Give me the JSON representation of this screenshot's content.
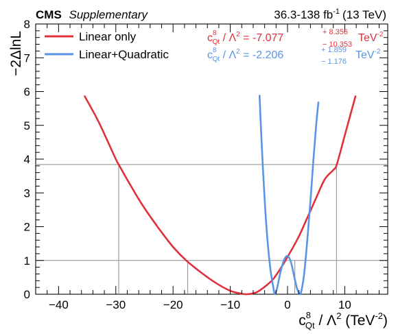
{
  "header": {
    "experiment": "CMS",
    "tag": "Supplementary",
    "lumi_range": "36.3-138 fb",
    "lumi_exp": "-1",
    "energy": "(13 TeV)"
  },
  "chart_data": {
    "type": "line",
    "xlabel_sym": "c",
    "xlabel_sup": "8",
    "xlabel_sub": "Qt",
    "xlabel_rest": " / Λ",
    "xlabel_sq": "2",
    "xlabel_unit": " (TeV",
    "xlabel_unit_exp": "-2",
    "xlabel_close": ")",
    "ylabel": "−2ΔlnL",
    "xlim": [
      -44,
      17.5
    ],
    "ylim": [
      0,
      8
    ],
    "xticks": [
      -40,
      -30,
      -20,
      -10,
      0,
      10
    ],
    "yticks": [
      0,
      1,
      2,
      3,
      4,
      5,
      6,
      7,
      8
    ],
    "hlines": [
      1,
      3.84
    ],
    "grid": false,
    "legend_position": "top-left",
    "series": [
      {
        "name": "Linear only",
        "color": "#e0303b",
        "x": [
          -35.5,
          -33,
          -30,
          -29.5,
          -27,
          -25,
          -22.5,
          -20,
          -17.7,
          -15,
          -12.5,
          -10,
          -8.5,
          -7.1,
          -5.5,
          -4,
          -2.5,
          -1,
          0.5,
          2,
          3.5,
          5,
          6.5,
          8,
          8.6,
          10,
          11.9
        ],
        "y": [
          5.88,
          5.1,
          4.0,
          3.84,
          3.1,
          2.55,
          1.95,
          1.4,
          1.0,
          0.63,
          0.33,
          0.1,
          0.03,
          0.0,
          0.05,
          0.22,
          0.45,
          0.82,
          1.25,
          1.72,
          2.28,
          2.85,
          3.4,
          3.68,
          3.84,
          4.7,
          5.88
        ]
      },
      {
        "name": "Linear+Quadratic",
        "color": "#5a93e8",
        "x": [
          -4.9,
          -4.5,
          -4,
          -3.5,
          -3,
          -2.5,
          -2.2,
          -1.8,
          -1.2,
          -0.6,
          0,
          0.6,
          1.2,
          1.7,
          2.2,
          2.6,
          3,
          3.5,
          4,
          4.5,
          5,
          5.4
        ],
        "y": [
          5.9,
          4.4,
          2.8,
          1.6,
          0.75,
          0.22,
          0.0,
          0.2,
          0.68,
          1.02,
          1.13,
          0.95,
          0.5,
          0.15,
          0.0,
          0.25,
          0.75,
          1.7,
          2.75,
          3.95,
          5.0,
          5.7
        ]
      }
    ],
    "intervals": [
      {
        "series": 0,
        "level": 1,
        "lo": -17.43,
        "hi": 1.28
      },
      {
        "series": 0,
        "level": 3.84,
        "lo": -29.5,
        "hi": 8.55
      }
    ],
    "results": [
      {
        "prefix": " / Λ",
        "sq": "2",
        "eq": " = -7.077",
        "up": "+ 8.356",
        "dn": "− 10.353",
        "unit": " TeV",
        "unit_exp": "-2"
      },
      {
        "prefix": " / Λ",
        "sq": "2",
        "eq": " = -2.206",
        "up": "+ 1.859",
        "dn": "− 1.176",
        "unit": " TeV",
        "unit_exp": "-2"
      }
    ]
  }
}
